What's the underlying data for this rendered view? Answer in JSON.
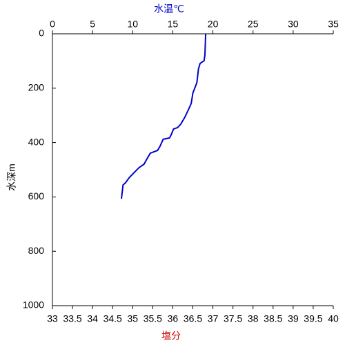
{
  "chart_data": {
    "type": "line",
    "top_axis_label": "水温℃",
    "top_axis_label_color": "#0000cc",
    "bottom_axis_label": "塩分",
    "bottom_axis_label_color": "#cc0000",
    "y_axis_label": "水深m",
    "xlim": [
      0,
      35
    ],
    "xticks": [
      0,
      5,
      10,
      15,
      20,
      25,
      30,
      35
    ],
    "x2lim": [
      33,
      40
    ],
    "x2ticks": [
      33,
      33.5,
      34,
      34.5,
      35,
      35.5,
      36,
      36.5,
      37,
      37.5,
      38,
      38.5,
      39,
      39.5,
      40
    ],
    "ylim": [
      0,
      1000
    ],
    "yticks": [
      0,
      200,
      400,
      600,
      800,
      1000
    ],
    "y_inverted": true,
    "x": [
      0,
      79,
      99,
      109,
      129,
      180,
      218,
      256,
      282,
      307,
      332,
      345,
      350,
      371,
      383,
      388,
      414,
      429,
      439,
      454,
      480,
      492,
      510,
      528,
      548,
      556,
      607
    ],
    "series": [
      {
        "color": "#0000cc",
        "values": [
          19.1,
          19.0,
          18.9,
          18.4,
          18.2,
          18.0,
          17.5,
          17.3,
          16.9,
          16.5,
          16.0,
          15.6,
          15.1,
          14.8,
          14.6,
          13.8,
          13.4,
          13.1,
          12.2,
          11.9,
          11.4,
          10.8,
          10.2,
          9.6,
          9.1,
          8.8,
          8.6
        ]
      }
    ]
  }
}
